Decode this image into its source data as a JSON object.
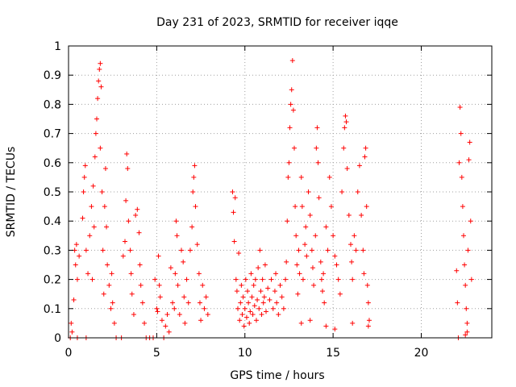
{
  "chart_data": {
    "type": "scatter",
    "title": "Day 231 of 2023, SRMTID for receiver iqqe",
    "xlabel": "GPS time / hours",
    "ylabel": "SRMTID / TECUs",
    "xlim": [
      0,
      24
    ],
    "ylim": [
      0,
      1
    ],
    "x_ticks": [
      "0",
      "5",
      "10",
      "15",
      "20"
    ],
    "y_ticks": [
      "0",
      "0.1",
      "0.2",
      "0.3",
      "0.4",
      "0.5",
      "0.6",
      "0.7",
      "0.8",
      "0.9",
      "1"
    ],
    "grid": true,
    "marker": "+",
    "color": "#ff0000",
    "series": [
      {
        "name": "SRMTID",
        "points": [
          [
            0.1,
            0.0
          ],
          [
            0.15,
            0.05
          ],
          [
            0.2,
            0.02
          ],
          [
            0.3,
            0.13
          ],
          [
            0.35,
            0.3
          ],
          [
            0.4,
            0.25
          ],
          [
            0.45,
            0.32
          ],
          [
            0.5,
            0.2
          ],
          [
            0.5,
            0.0
          ],
          [
            0.6,
            0.28
          ],
          [
            0.8,
            0.41
          ],
          [
            0.85,
            0.5
          ],
          [
            0.9,
            0.55
          ],
          [
            0.95,
            0.59
          ],
          [
            1.0,
            0.3
          ],
          [
            1.0,
            0.0
          ],
          [
            1.1,
            0.22
          ],
          [
            1.2,
            0.35
          ],
          [
            1.3,
            0.45
          ],
          [
            1.35,
            0.2
          ],
          [
            1.4,
            0.52
          ],
          [
            1.45,
            0.38
          ],
          [
            1.5,
            0.62
          ],
          [
            1.55,
            0.7
          ],
          [
            1.6,
            0.75
          ],
          [
            1.65,
            0.82
          ],
          [
            1.7,
            0.88
          ],
          [
            1.75,
            0.92
          ],
          [
            1.8,
            0.94
          ],
          [
            1.8,
            0.65
          ],
          [
            1.85,
            0.86
          ],
          [
            1.9,
            0.5
          ],
          [
            1.95,
            0.3
          ],
          [
            2.0,
            0.15
          ],
          [
            2.05,
            0.45
          ],
          [
            2.1,
            0.58
          ],
          [
            2.15,
            0.38
          ],
          [
            2.2,
            0.25
          ],
          [
            2.3,
            0.18
          ],
          [
            2.4,
            0.1
          ],
          [
            2.45,
            0.22
          ],
          [
            2.5,
            0.12
          ],
          [
            2.6,
            0.05
          ],
          [
            2.7,
            0.0
          ],
          [
            3.0,
            0.0
          ],
          [
            3.1,
            0.28
          ],
          [
            3.2,
            0.33
          ],
          [
            3.25,
            0.47
          ],
          [
            3.3,
            0.63
          ],
          [
            3.35,
            0.58
          ],
          [
            3.4,
            0.4
          ],
          [
            3.5,
            0.3
          ],
          [
            3.55,
            0.22
          ],
          [
            3.6,
            0.15
          ],
          [
            3.7,
            0.08
          ],
          [
            3.8,
            0.42
          ],
          [
            3.9,
            0.44
          ],
          [
            4.0,
            0.36
          ],
          [
            4.05,
            0.25
          ],
          [
            4.1,
            0.18
          ],
          [
            4.2,
            0.12
          ],
          [
            4.3,
            0.05
          ],
          [
            4.4,
            0.0
          ],
          [
            4.6,
            0.0
          ],
          [
            4.8,
            0.0
          ],
          [
            4.9,
            0.2
          ],
          [
            5.0,
            0.1
          ],
          [
            5.05,
            0.09
          ],
          [
            5.1,
            0.28
          ],
          [
            5.15,
            0.18
          ],
          [
            5.2,
            0.14
          ],
          [
            5.3,
            0.06
          ],
          [
            5.4,
            0.0
          ],
          [
            5.5,
            0.04
          ],
          [
            5.6,
            0.08
          ],
          [
            5.7,
            0.02
          ],
          [
            5.8,
            0.24
          ],
          [
            5.9,
            0.12
          ],
          [
            6.0,
            0.1
          ],
          [
            6.05,
            0.22
          ],
          [
            6.1,
            0.4
          ],
          [
            6.15,
            0.35
          ],
          [
            6.2,
            0.18
          ],
          [
            6.3,
            0.08
          ],
          [
            6.4,
            0.3
          ],
          [
            6.5,
            0.26
          ],
          [
            6.55,
            0.14
          ],
          [
            6.6,
            0.05
          ],
          [
            6.7,
            0.2
          ],
          [
            6.8,
            0.12
          ],
          [
            6.9,
            0.3
          ],
          [
            7.0,
            0.38
          ],
          [
            7.05,
            0.5
          ],
          [
            7.1,
            0.55
          ],
          [
            7.15,
            0.59
          ],
          [
            7.2,
            0.45
          ],
          [
            7.3,
            0.32
          ],
          [
            7.4,
            0.22
          ],
          [
            7.45,
            0.12
          ],
          [
            7.5,
            0.06
          ],
          [
            7.6,
            0.18
          ],
          [
            7.7,
            0.1
          ],
          [
            7.8,
            0.14
          ],
          [
            7.9,
            0.08
          ],
          [
            9.3,
            0.5
          ],
          [
            9.35,
            0.43
          ],
          [
            9.4,
            0.33
          ],
          [
            9.45,
            0.48
          ],
          [
            9.5,
            0.2
          ],
          [
            9.55,
            0.16
          ],
          [
            9.6,
            0.1
          ],
          [
            9.65,
            0.29
          ],
          [
            9.7,
            0.06
          ],
          [
            9.75,
            0.12
          ],
          [
            9.8,
            0.18
          ],
          [
            9.85,
            0.08
          ],
          [
            9.9,
            0.14
          ],
          [
            9.95,
            0.04
          ],
          [
            10.0,
            0.1
          ],
          [
            10.05,
            0.2
          ],
          [
            10.1,
            0.07
          ],
          [
            10.15,
            0.16
          ],
          [
            10.2,
            0.12
          ],
          [
            10.25,
            0.05
          ],
          [
            10.3,
            0.09
          ],
          [
            10.35,
            0.22
          ],
          [
            10.4,
            0.14
          ],
          [
            10.45,
            0.08
          ],
          [
            10.5,
            0.18
          ],
          [
            10.55,
            0.11
          ],
          [
            10.6,
            0.2
          ],
          [
            10.65,
            0.06
          ],
          [
            10.7,
            0.13
          ],
          [
            10.75,
            0.24
          ],
          [
            10.8,
            0.1
          ],
          [
            10.85,
            0.3
          ],
          [
            10.9,
            0.16
          ],
          [
            10.95,
            0.08
          ],
          [
            11.0,
            0.2
          ],
          [
            11.05,
            0.12
          ],
          [
            11.1,
            0.14
          ],
          [
            11.15,
            0.25
          ],
          [
            11.2,
            0.09
          ],
          [
            11.3,
            0.17
          ],
          [
            11.4,
            0.13
          ],
          [
            11.5,
            0.2
          ],
          [
            11.6,
            0.1
          ],
          [
            11.7,
            0.16
          ],
          [
            11.75,
            0.22
          ],
          [
            11.8,
            0.12
          ],
          [
            11.9,
            0.08
          ],
          [
            12.0,
            0.18
          ],
          [
            12.1,
            0.14
          ],
          [
            12.2,
            0.1
          ],
          [
            12.3,
            0.2
          ],
          [
            12.35,
            0.26
          ],
          [
            12.4,
            0.4
          ],
          [
            12.45,
            0.55
          ],
          [
            12.5,
            0.6
          ],
          [
            12.55,
            0.72
          ],
          [
            12.6,
            0.8
          ],
          [
            12.65,
            0.85
          ],
          [
            12.7,
            0.95
          ],
          [
            12.75,
            0.78
          ],
          [
            12.8,
            0.65
          ],
          [
            12.85,
            0.45
          ],
          [
            12.9,
            0.35
          ],
          [
            12.95,
            0.25
          ],
          [
            13.0,
            0.15
          ],
          [
            13.05,
            0.3
          ],
          [
            13.1,
            0.22
          ],
          [
            13.2,
            0.55
          ],
          [
            13.25,
            0.45
          ],
          [
            13.3,
            0.2
          ],
          [
            13.4,
            0.32
          ],
          [
            13.45,
            0.38
          ],
          [
            13.5,
            0.28
          ],
          [
            13.6,
            0.5
          ],
          [
            13.7,
            0.42
          ],
          [
            13.8,
            0.3
          ],
          [
            13.85,
            0.24
          ],
          [
            13.9,
            0.18
          ],
          [
            14.0,
            0.35
          ],
          [
            14.05,
            0.65
          ],
          [
            14.1,
            0.72
          ],
          [
            14.15,
            0.6
          ],
          [
            14.2,
            0.48
          ],
          [
            14.3,
            0.26
          ],
          [
            14.35,
            0.2
          ],
          [
            14.4,
            0.16
          ],
          [
            14.45,
            0.22
          ],
          [
            14.5,
            0.12
          ],
          [
            14.6,
            0.38
          ],
          [
            14.7,
            0.3
          ],
          [
            14.8,
            0.55
          ],
          [
            14.9,
            0.45
          ],
          [
            15.0,
            0.35
          ],
          [
            15.1,
            0.28
          ],
          [
            15.2,
            0.25
          ],
          [
            15.3,
            0.2
          ],
          [
            15.4,
            0.15
          ],
          [
            15.5,
            0.5
          ],
          [
            15.6,
            0.65
          ],
          [
            15.65,
            0.72
          ],
          [
            15.7,
            0.76
          ],
          [
            15.75,
            0.74
          ],
          [
            15.8,
            0.58
          ],
          [
            15.9,
            0.42
          ],
          [
            16.0,
            0.32
          ],
          [
            16.05,
            0.26
          ],
          [
            16.1,
            0.2
          ],
          [
            16.2,
            0.35
          ],
          [
            16.3,
            0.3
          ],
          [
            16.4,
            0.5
          ],
          [
            16.5,
            0.59
          ],
          [
            16.6,
            0.42
          ],
          [
            16.7,
            0.3
          ],
          [
            16.75,
            0.22
          ],
          [
            16.8,
            0.62
          ],
          [
            16.85,
            0.65
          ],
          [
            16.9,
            0.45
          ],
          [
            16.95,
            0.18
          ],
          [
            17.0,
            0.12
          ],
          [
            17.05,
            0.06
          ],
          [
            13.2,
            0.05
          ],
          [
            13.7,
            0.06
          ],
          [
            14.6,
            0.04
          ],
          [
            15.1,
            0.03
          ],
          [
            16.1,
            0.05
          ],
          [
            17.0,
            0.04
          ],
          [
            22.0,
            0.23
          ],
          [
            22.05,
            0.12
          ],
          [
            22.1,
            0.0
          ],
          [
            22.15,
            0.6
          ],
          [
            22.2,
            0.79
          ],
          [
            22.25,
            0.7
          ],
          [
            22.3,
            0.55
          ],
          [
            22.35,
            0.45
          ],
          [
            22.4,
            0.35
          ],
          [
            22.45,
            0.25
          ],
          [
            22.5,
            0.18
          ],
          [
            22.55,
            0.1
          ],
          [
            22.6,
            0.05
          ],
          [
            22.65,
            0.3
          ],
          [
            22.7,
            0.61
          ],
          [
            22.75,
            0.67
          ],
          [
            22.8,
            0.4
          ],
          [
            22.85,
            0.2
          ],
          [
            22.5,
            0.01
          ],
          [
            22.6,
            0.02
          ]
        ]
      }
    ]
  }
}
